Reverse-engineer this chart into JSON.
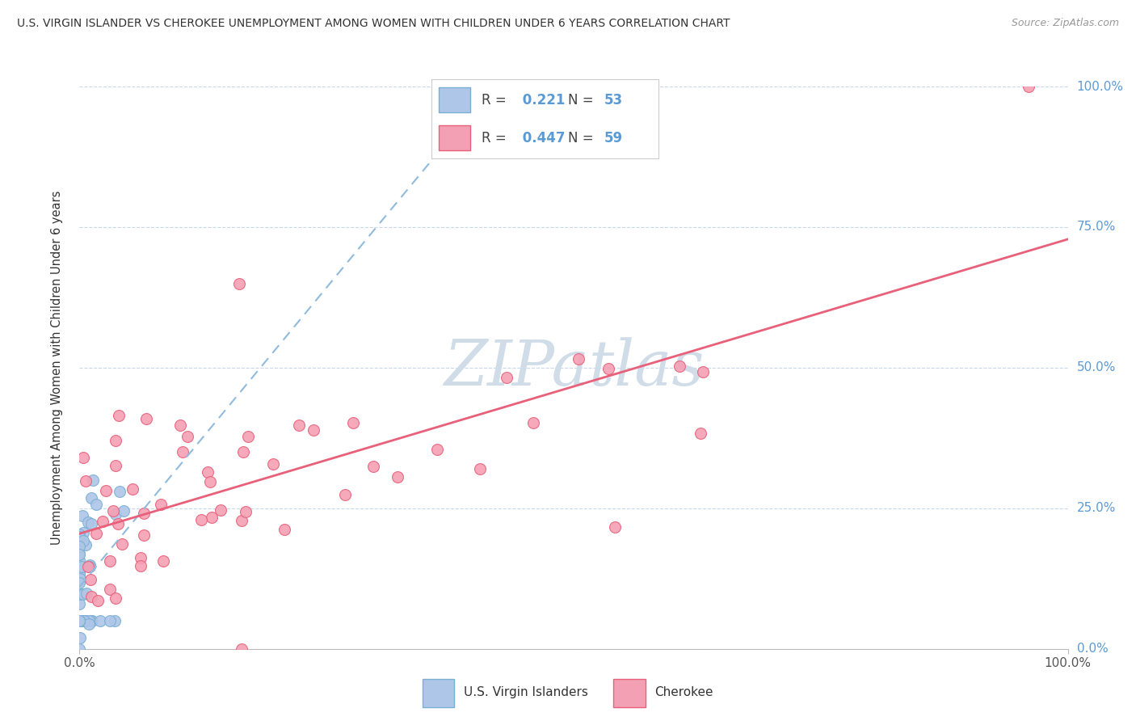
{
  "title": "U.S. VIRGIN ISLANDER VS CHEROKEE UNEMPLOYMENT AMONG WOMEN WITH CHILDREN UNDER 6 YEARS CORRELATION CHART",
  "source": "Source: ZipAtlas.com",
  "ylabel": "Unemployment Among Women with Children Under 6 years",
  "R_vi": 0.221,
  "N_vi": 53,
  "R_cherokee": 0.447,
  "N_cherokee": 59,
  "vi_fill": "#aec6e8",
  "vi_edge": "#7aafd4",
  "cherokee_fill": "#f4a0b4",
  "cherokee_edge": "#e8607a",
  "vi_trend_color": "#90bbdd",
  "cherokee_trend_color": "#e8607a",
  "grid_color": "#c8d8e8",
  "ytick_color": "#5b9bd5",
  "label_color": "#333333",
  "source_color": "#999999",
  "watermark_color": "#d0dde8",
  "background": "#ffffff",
  "yticks": [
    0.0,
    0.25,
    0.5,
    0.75,
    1.0
  ],
  "ytick_labels": [
    "0.0%",
    "25.0%",
    "50.0%",
    "75.0%",
    "100.0%"
  ],
  "xtick_labels": [
    "0.0%",
    "100.0%"
  ],
  "legend_vi_label": "U.S. Virgin Islanders",
  "legend_cherokee_label": "Cherokee"
}
